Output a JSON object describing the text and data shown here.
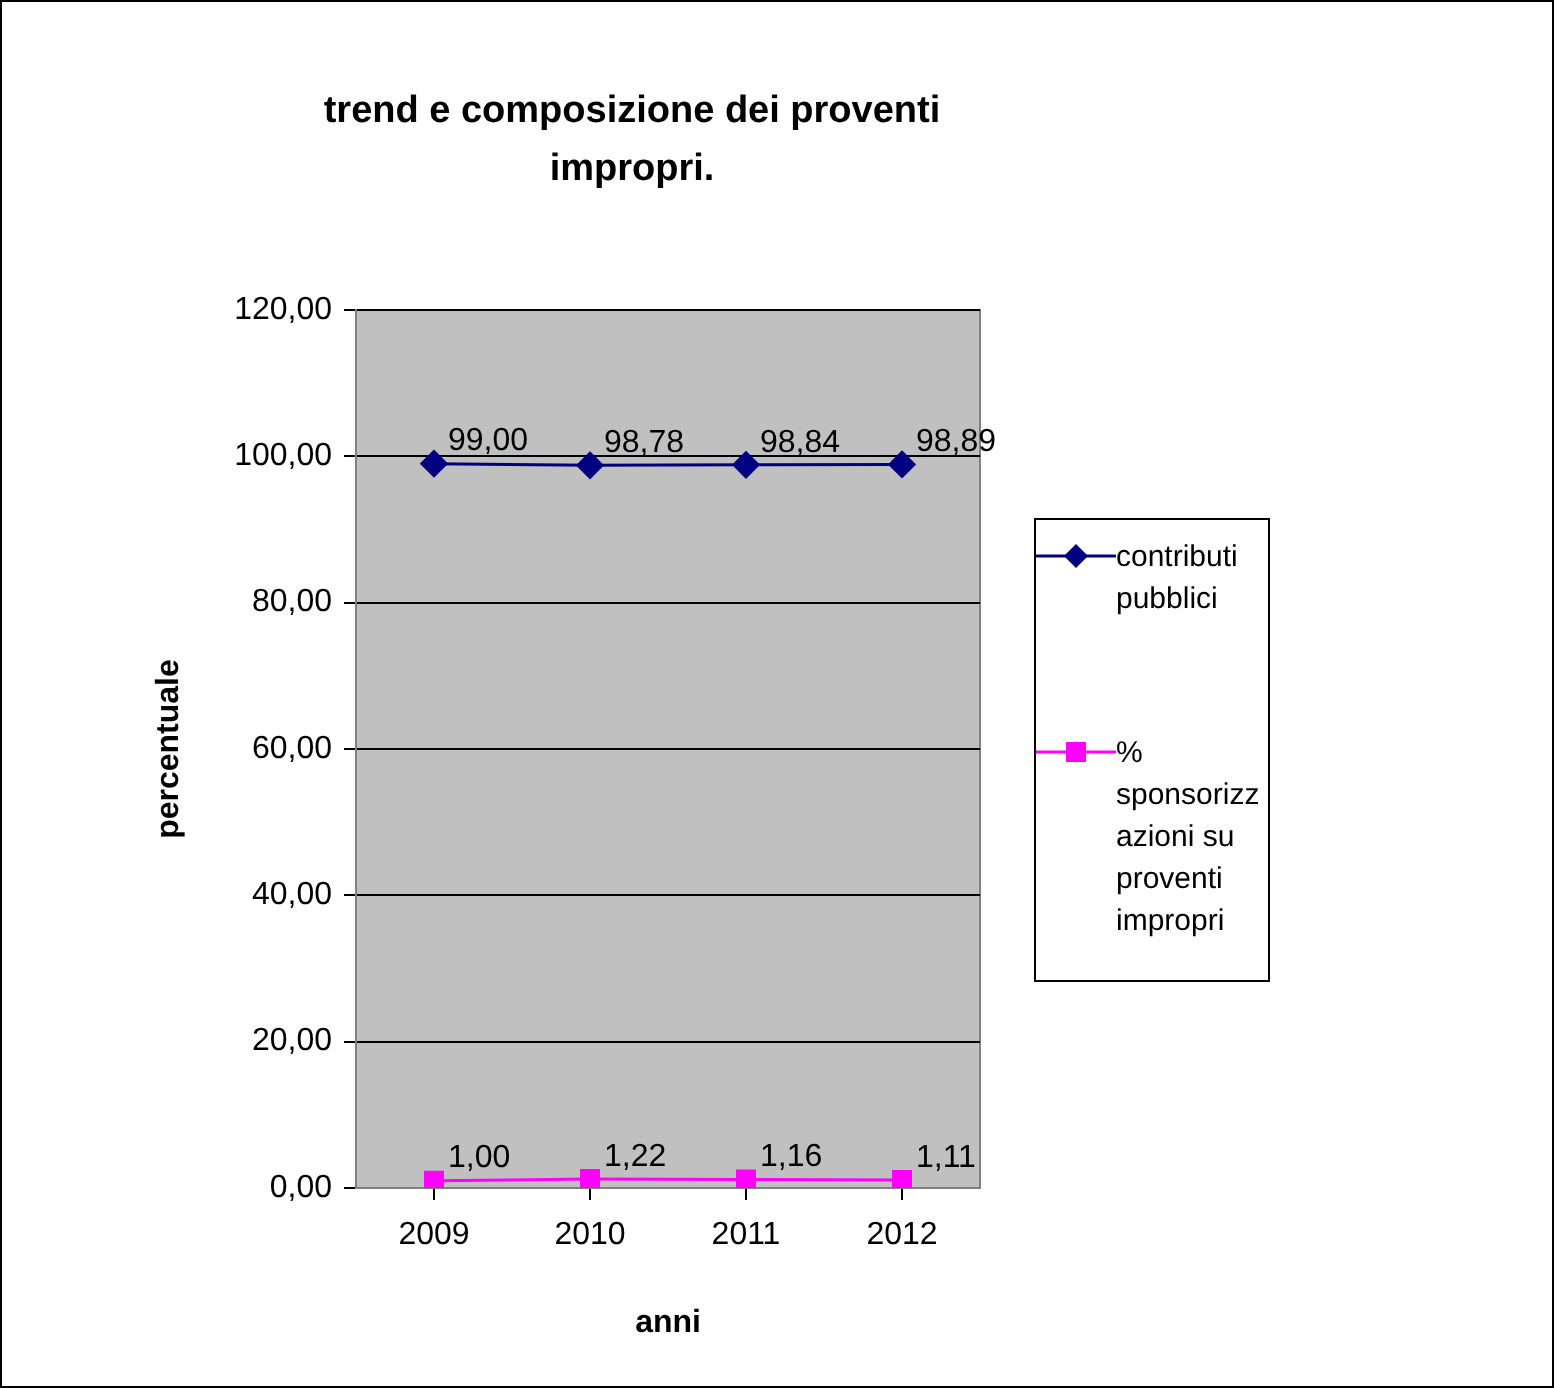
{
  "chart_data": {
    "type": "line",
    "title": "trend e composizione dei proventi impropri.",
    "xlabel": "anni",
    "ylabel": "percentuale",
    "categories": [
      "2009",
      "2010",
      "2011",
      "2012"
    ],
    "series": [
      {
        "name": "contributi pubblici",
        "color": "#000080",
        "marker": "diamond",
        "values": [
          99.0,
          98.78,
          98.84,
          98.89
        ],
        "value_labels": [
          "99,00",
          "98,78",
          "98,84",
          "98,89"
        ]
      },
      {
        "name": "% sponsorizzazioni su proventi impropri",
        "color": "#ff00ff",
        "marker": "square",
        "values": [
          1.0,
          1.22,
          1.16,
          1.11
        ],
        "value_labels": [
          "1,00",
          "1,22",
          "1,16",
          "1,11"
        ]
      }
    ],
    "ylim": [
      0,
      120
    ],
    "yticks": [
      {
        "value": 0,
        "label": "0,00"
      },
      {
        "value": 20,
        "label": "20,00"
      },
      {
        "value": 40,
        "label": "40,00"
      },
      {
        "value": 60,
        "label": "60,00"
      },
      {
        "value": 80,
        "label": "80,00"
      },
      {
        "value": 100,
        "label": "100,00"
      },
      {
        "value": 120,
        "label": "120,00"
      }
    ],
    "grid": "y",
    "legend": "right",
    "line_style": "solid"
  }
}
